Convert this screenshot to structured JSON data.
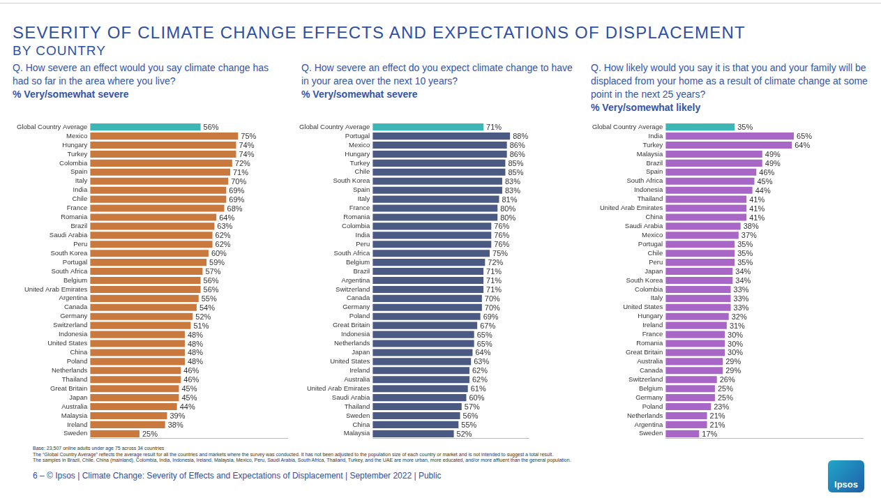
{
  "header": {
    "title": "SEVERITY OF CLIMATE CHANGE EFFECTS AND EXPECTATIONS OF DISPLACEMENT",
    "subtitle": "BY COUNTRY"
  },
  "chart_data": [
    {
      "type": "bar",
      "orientation": "horizontal",
      "title": "Q. How severe an effect would you say climate change has had so far in the area where you live?",
      "subtitle": "% Very/somewhat severe",
      "categories": [
        "Global Country Average",
        "Mexico",
        "Hungary",
        "Turkey",
        "Colombia",
        "Spain",
        "Italy",
        "India",
        "Chile",
        "France",
        "Romania",
        "Brazil",
        "Saudi Arabia",
        "Peru",
        "South Korea",
        "Portugal",
        "South Africa",
        "Belgium",
        "United Arab Emirates",
        "Argentina",
        "Canada",
        "Germany",
        "Switzerland",
        "Indonesia",
        "United States",
        "China",
        "Poland",
        "Netherlands",
        "Thailand",
        "Great Britain",
        "Japan",
        "Australia",
        "Malaysia",
        "Ireland",
        "Sweden"
      ],
      "values": [
        56,
        75,
        74,
        74,
        72,
        71,
        70,
        69,
        69,
        68,
        64,
        63,
        62,
        62,
        60,
        59,
        57,
        56,
        56,
        55,
        54,
        52,
        51,
        48,
        48,
        48,
        48,
        46,
        46,
        45,
        45,
        44,
        39,
        38,
        25
      ],
      "value_labels": [
        "56%",
        "75%",
        "74%",
        "74%",
        "72%",
        "71%",
        "70%",
        "69%",
        "69%",
        "68%",
        "64%",
        "63%",
        "62%",
        "62%",
        "60%",
        "59%",
        "57%",
        "56%",
        "56%",
        "55%",
        "54%",
        "52%",
        "51%",
        "48%",
        "48%",
        "48%",
        "48%",
        "46%",
        "46%",
        "45%",
        "45%",
        "44%",
        "39%",
        "38%",
        "25%"
      ],
      "colors": [
        "#3db7b5",
        "#c9793e",
        "#c9793e",
        "#c9793e",
        "#c9793e",
        "#c9793e",
        "#c9793e",
        "#c9793e",
        "#c9793e",
        "#c9793e",
        "#c9793e",
        "#c9793e",
        "#c9793e",
        "#c9793e",
        "#c9793e",
        "#c9793e",
        "#c9793e",
        "#c9793e",
        "#c9793e",
        "#c9793e",
        "#c9793e",
        "#c9793e",
        "#c9793e",
        "#c9793e",
        "#c9793e",
        "#c9793e",
        "#c9793e",
        "#c9793e",
        "#c9793e",
        "#c9793e",
        "#c9793e",
        "#c9793e",
        "#c9793e",
        "#c9793e",
        "#c9793e"
      ],
      "xlim": [
        0,
        100
      ],
      "grid": false,
      "data_labels": true,
      "tick_labels": "y"
    },
    {
      "type": "bar",
      "orientation": "horizontal",
      "title": "Q. How severe an effect do you expect climate change to have in your area over the next 10 years?",
      "subtitle": "% Very/somewhat severe",
      "categories": [
        "Global Country Average",
        "Portugal",
        "Mexico",
        "Hungary",
        "Turkey",
        "Chile",
        "South Korea",
        "Spain",
        "Italy",
        "France",
        "Romania",
        "Colombia",
        "India",
        "Peru",
        "South Africa",
        "Belgium",
        "Brazil",
        "Argentina",
        "Switzerland",
        "Canada",
        "Germany",
        "Poland",
        "Great Britain",
        "Indonesia",
        "Netherlands",
        "Japan",
        "United States",
        "Ireland",
        "Australia",
        "United Arab Emirates",
        "Saudi Arabia",
        "Thailand",
        "Sweden",
        "China",
        "Malaysia"
      ],
      "values": [
        71,
        88,
        86,
        86,
        85,
        85,
        83,
        83,
        81,
        80,
        80,
        76,
        76,
        76,
        75,
        72,
        71,
        71,
        71,
        70,
        70,
        69,
        67,
        65,
        65,
        64,
        63,
        62,
        62,
        61,
        60,
        57,
        56,
        55,
        52
      ],
      "value_labels": [
        "71%",
        "88%",
        "86%",
        "86%",
        "85%",
        "85%",
        "83%",
        "83%",
        "81%",
        "80%",
        "80%",
        "76%",
        "76%",
        "76%",
        "75%",
        "72%",
        "71%",
        "71%",
        "71%",
        "70%",
        "70%",
        "69%",
        "67%",
        "65%",
        "65%",
        "64%",
        "63%",
        "62%",
        "62%",
        "61%",
        "60%",
        "57%",
        "56%",
        "55%",
        "52%"
      ],
      "colors": [
        "#3db7b5",
        "#4b5a82",
        "#4b5a82",
        "#4b5a82",
        "#4b5a82",
        "#4b5a82",
        "#4b5a82",
        "#4b5a82",
        "#4b5a82",
        "#4b5a82",
        "#4b5a82",
        "#4b5a82",
        "#4b5a82",
        "#4b5a82",
        "#4b5a82",
        "#4b5a82",
        "#4b5a82",
        "#4b5a82",
        "#4b5a82",
        "#4b5a82",
        "#4b5a82",
        "#4b5a82",
        "#4b5a82",
        "#4b5a82",
        "#4b5a82",
        "#4b5a82",
        "#4b5a82",
        "#4b5a82",
        "#4b5a82",
        "#4b5a82",
        "#4b5a82",
        "#4b5a82",
        "#4b5a82",
        "#4b5a82",
        "#4b5a82"
      ],
      "xlim": [
        0,
        100
      ],
      "grid": false,
      "data_labels": true,
      "tick_labels": "y"
    },
    {
      "type": "bar",
      "orientation": "horizontal",
      "title": "Q. How likely would you say it is that you and your family will be displaced from your home as a result of climate change at some point in the next 25 years?",
      "subtitle": "% Very/somewhat likely",
      "categories": [
        "Global Country Average",
        "India",
        "Turkey",
        "Malaysia",
        "Brazil",
        "Spain",
        "South Africa",
        "Indonesia",
        "Thailand",
        "United Arab Emirates",
        "China",
        "Saudi Arabia",
        "Mexico",
        "Portugal",
        "Chile",
        "Peru",
        "Japan",
        "South Korea",
        "Colombia",
        "Italy",
        "United States",
        "Hungary",
        "Ireland",
        "France",
        "Romania",
        "Great Britain",
        "Australia",
        "Canada",
        "Switzerland",
        "Belgium",
        "Germany",
        "Poland",
        "Netherlands",
        "Argentina",
        "Sweden"
      ],
      "values": [
        35,
        65,
        64,
        49,
        49,
        46,
        45,
        44,
        41,
        41,
        41,
        38,
        37,
        35,
        35,
        35,
        34,
        34,
        33,
        33,
        33,
        32,
        31,
        30,
        30,
        30,
        29,
        29,
        26,
        25,
        25,
        23,
        21,
        21,
        17
      ],
      "value_labels": [
        "35%",
        "65%",
        "64%",
        "49%",
        "49%",
        "46%",
        "45%",
        "44%",
        "41%",
        "41%",
        "41%",
        "38%",
        "37%",
        "35%",
        "35%",
        "35%",
        "34%",
        "34%",
        "33%",
        "33%",
        "33%",
        "32%",
        "31%",
        "30%",
        "30%",
        "30%",
        "29%",
        "29%",
        "26%",
        "25%",
        "25%",
        "23%",
        "21%",
        "21%",
        "17%"
      ],
      "colors": [
        "#3db7b5",
        "#a866c6",
        "#a866c6",
        "#a866c6",
        "#a866c6",
        "#a866c6",
        "#a866c6",
        "#a866c6",
        "#a866c6",
        "#a866c6",
        "#a866c6",
        "#a866c6",
        "#a866c6",
        "#a866c6",
        "#a866c6",
        "#a866c6",
        "#a866c6",
        "#a866c6",
        "#a866c6",
        "#a866c6",
        "#a866c6",
        "#a866c6",
        "#a866c6",
        "#a866c6",
        "#a866c6",
        "#a866c6",
        "#a866c6",
        "#a866c6",
        "#a866c6",
        "#a866c6",
        "#a866c6",
        "#a866c6",
        "#a866c6",
        "#a866c6",
        "#a866c6"
      ],
      "xlim": [
        0,
        100
      ],
      "grid": false,
      "data_labels": true,
      "tick_labels": "y"
    }
  ],
  "notes": [
    "Base: 23,507 online adults under age 75 across 34 countries",
    "The “Global Country Average” reflects the average result for all the countries and markets where the survey was conducted. It has not been adjusted to the population size of each country or market and is not intended to suggest a total result.",
    "The samples in Brazil, Chile, China (mainland), Colombia, India, Indonesia, Ireland, Malaysia, Mexico, Peru, Saudi Arabia, South Africa, Thailand, Turkey, and the UAE are more urban, more educated, and/or more affluent than the general population."
  ],
  "footer": "6 – © Ipsos | Climate Change: Severity of Effects and Expectations of Displacement | September 2022 | Public",
  "logo": "Ipsos"
}
